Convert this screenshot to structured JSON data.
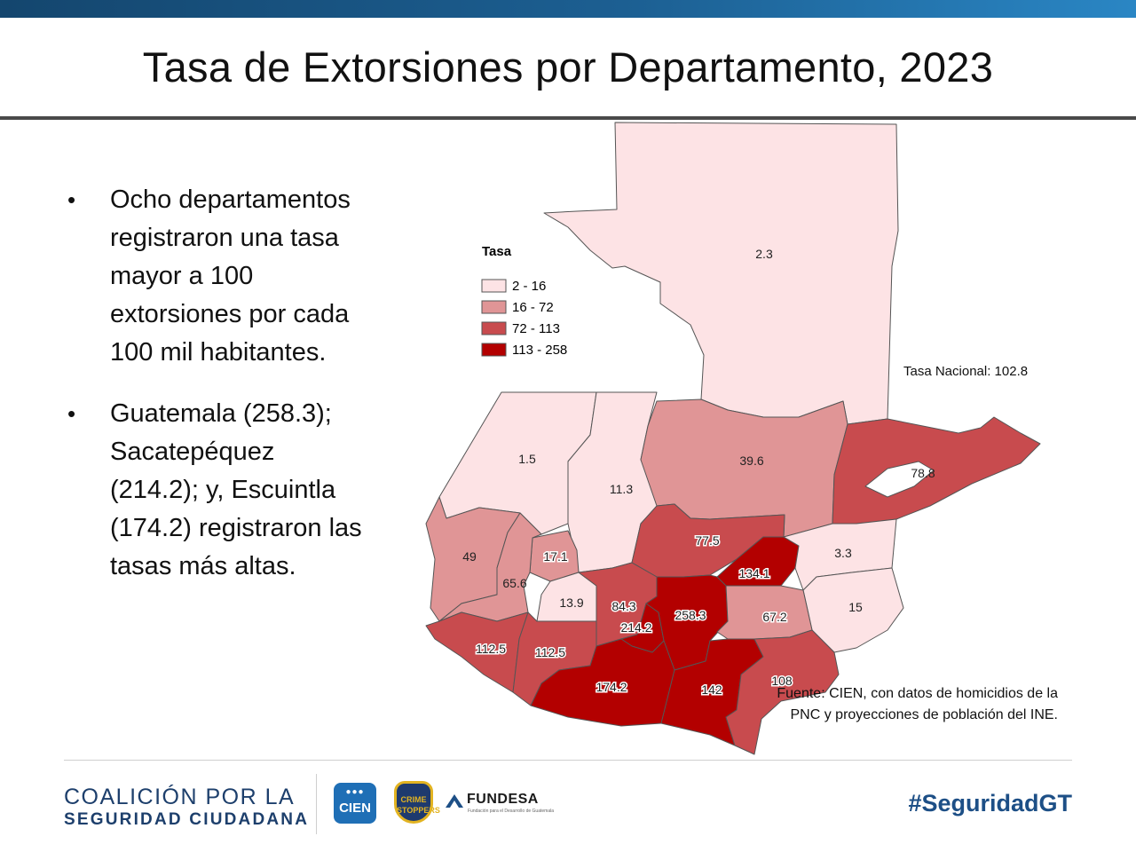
{
  "title": "Tasa de Extorsiones por Departamento, 2023",
  "bullets": [
    "Ocho departamentos registraron una tasa mayor a 100 extorsiones por cada 100 mil habitantes.",
    "Guatemala (258.3); Sacatepéquez (214.2); y, Escuintla (174.2) registraron las tasas más altas."
  ],
  "legend": {
    "title": "Tasa",
    "items": [
      {
        "label": "2 - 16",
        "color": "#fde3e5"
      },
      {
        "label": "16 - 72",
        "color": "#e09596"
      },
      {
        "label": "72 - 113",
        "color": "#c84b4e"
      },
      {
        "label": "113 - 258",
        "color": "#b30000"
      }
    ]
  },
  "map_values": [
    {
      "label": "2.3",
      "value": 2.3
    },
    {
      "label": "1.5",
      "value": 1.5
    },
    {
      "label": "11.3",
      "value": 11.3
    },
    {
      "label": "39.6",
      "value": 39.6
    },
    {
      "label": "78.8",
      "value": 78.8
    },
    {
      "label": "49",
      "value": 49
    },
    {
      "label": "17.1",
      "value": 17.1
    },
    {
      "label": "65.6",
      "value": 65.6
    },
    {
      "label": "77.5",
      "value": 77.5
    },
    {
      "label": "134.1",
      "value": 134.1
    },
    {
      "label": "3.3",
      "value": 3.3
    },
    {
      "label": "15",
      "value": 15
    },
    {
      "label": "13.9",
      "value": 13.9
    },
    {
      "label": "84.3",
      "value": 84.3
    },
    {
      "label": "214.2",
      "value": 214.2
    },
    {
      "label": "258.3",
      "value": 258.3
    },
    {
      "label": "67.2",
      "value": 67.2
    },
    {
      "label": "112.5",
      "value": 112.5
    },
    {
      "label": "112.5",
      "value": 112.5
    },
    {
      "label": "174.2",
      "value": 174.2
    },
    {
      "label": "142",
      "value": 142
    },
    {
      "label": "108",
      "value": 108
    }
  ],
  "national_rate": "Tasa Nacional: 102.8",
  "source": "Fuente: CIEN, con datos de homicidios de la PNC y proyecciones de población del INE.",
  "footer": {
    "coalition_line1": "COALICIÓN POR LA",
    "coalition_line2": "SEGURIDAD CIUDADANA",
    "cien": "CIEN",
    "crime": "CRIME STOPPERS",
    "fundesa": "FUNDESA",
    "fundesa_sub": "Fundación para el Desarrollo de Guatemala",
    "hashtag": "#SeguridadGT"
  }
}
